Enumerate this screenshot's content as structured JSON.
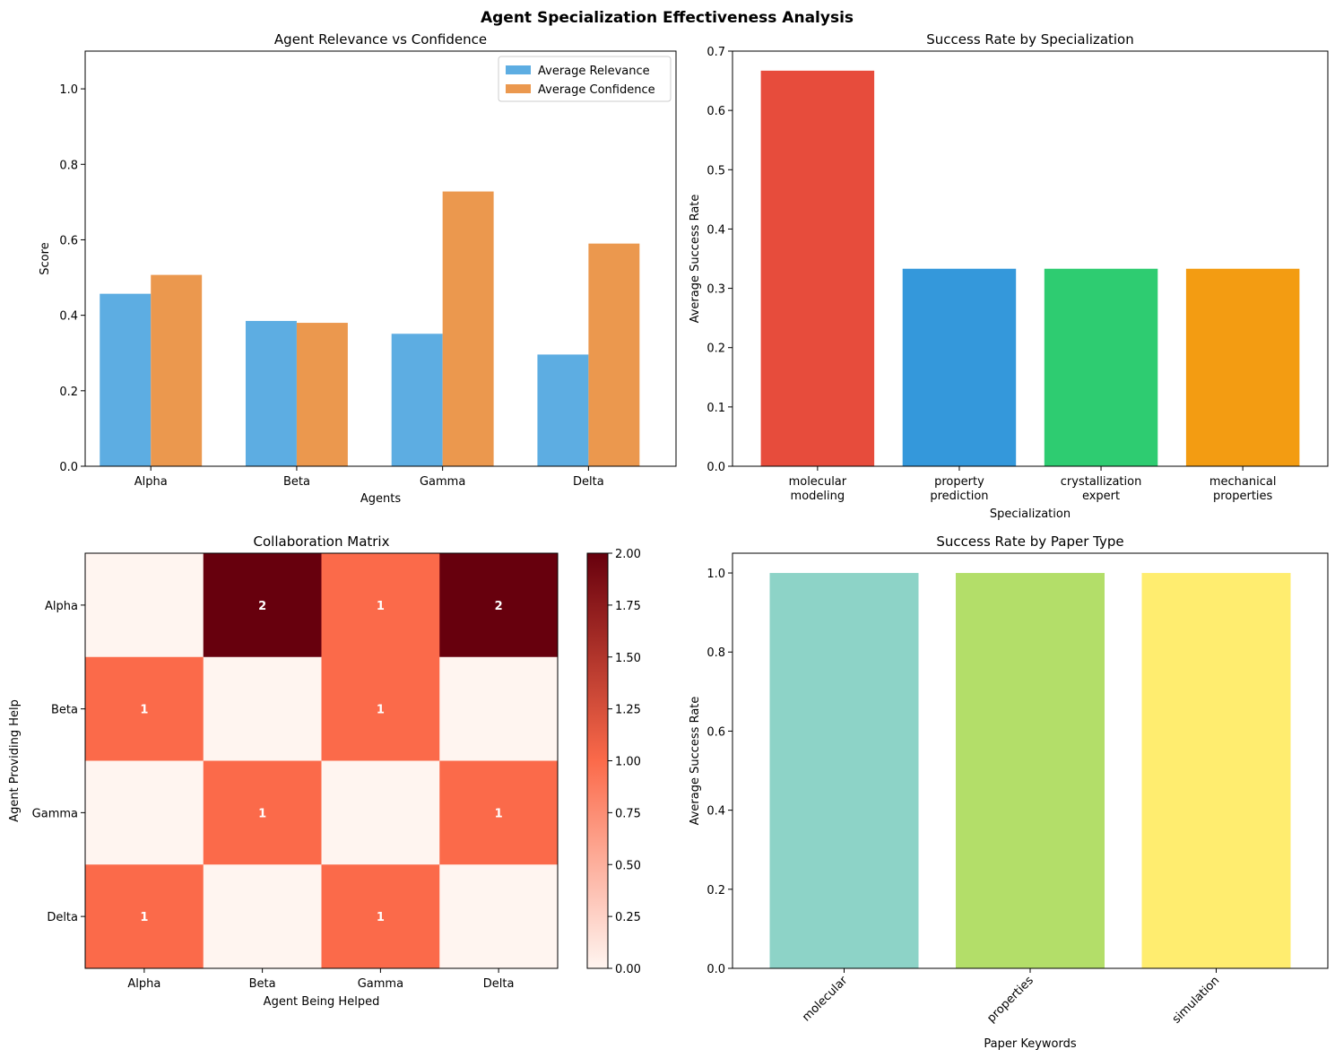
{
  "suptitle": "Agent Specialization Effectiveness Analysis",
  "chart_data": [
    {
      "type": "bar",
      "title": "Agent Relevance vs Confidence",
      "xlabel": "Agents",
      "ylabel": "Score",
      "categories": [
        "Alpha",
        "Beta",
        "Gamma",
        "Delta"
      ],
      "series": [
        {
          "name": "Average Relevance",
          "color": "#5dade2",
          "values": [
            0.457,
            0.385,
            0.351,
            0.296
          ]
        },
        {
          "name": "Average Confidence",
          "color": "#eb984e",
          "values": [
            0.507,
            0.38,
            0.728,
            0.59
          ]
        }
      ],
      "ylim": [
        0,
        1.1
      ],
      "yticks": [
        0.0,
        0.2,
        0.4,
        0.6,
        0.8,
        1.0
      ],
      "ytick_labels": [
        "0.0",
        "0.2",
        "0.4",
        "0.6",
        "0.8",
        "1.0"
      ],
      "legend": "top-right",
      "grid": false
    },
    {
      "type": "bar",
      "title": "Success Rate by Specialization",
      "xlabel": "Specialization",
      "ylabel": "Average Success Rate",
      "categories": [
        "molecular\nmodeling",
        "property\nprediction",
        "crystallization\nexpert",
        "mechanical\nproperties"
      ],
      "values": [
        0.667,
        0.333,
        0.333,
        0.333
      ],
      "colors": [
        "#e74c3c",
        "#3498db",
        "#2ecc71",
        "#f39c12"
      ],
      "ylim": [
        0,
        0.7
      ],
      "yticks": [
        0.0,
        0.1,
        0.2,
        0.3,
        0.4,
        0.5,
        0.6,
        0.7
      ],
      "ytick_labels": [
        "0.0",
        "0.1",
        "0.2",
        "0.3",
        "0.4",
        "0.5",
        "0.6",
        "0.7"
      ],
      "grid": false
    },
    {
      "type": "heatmap",
      "title": "Collaboration Matrix",
      "xlabel": "Agent Being Helped",
      "ylabel": "Agent Providing Help",
      "x_labels": [
        "Alpha",
        "Beta",
        "Gamma",
        "Delta"
      ],
      "y_labels": [
        "Alpha",
        "Beta",
        "Gamma",
        "Delta"
      ],
      "matrix": [
        [
          0,
          2,
          1,
          2
        ],
        [
          1,
          0,
          1,
          0
        ],
        [
          0,
          1,
          0,
          1
        ],
        [
          1,
          0,
          1,
          0
        ]
      ],
      "colormap": "Reds",
      "vmin": 0,
      "vmax": 2,
      "colorbar_ticks": [
        0.0,
        0.25,
        0.5,
        0.75,
        1.0,
        1.25,
        1.5,
        1.75,
        2.0
      ],
      "colorbar_tick_labels": [
        "0.00",
        "0.25",
        "0.50",
        "0.75",
        "1.00",
        "1.25",
        "1.50",
        "1.75",
        "2.00"
      ]
    },
    {
      "type": "bar",
      "title": "Success Rate by Paper Type",
      "xlabel": "Paper Keywords",
      "ylabel": "Average Success Rate",
      "categories": [
        "molecular",
        "properties",
        "simulation"
      ],
      "values": [
        1.0,
        1.0,
        1.0
      ],
      "colors": [
        "#8dd3c7",
        "#b3de69",
        "#ffed6f"
      ],
      "ylim": [
        0,
        1.05
      ],
      "yticks": [
        0.0,
        0.2,
        0.4,
        0.6,
        0.8,
        1.0
      ],
      "ytick_labels": [
        "0.0",
        "0.2",
        "0.4",
        "0.6",
        "0.8",
        "1.0"
      ],
      "xtick_rotation": 45,
      "grid": false
    }
  ]
}
